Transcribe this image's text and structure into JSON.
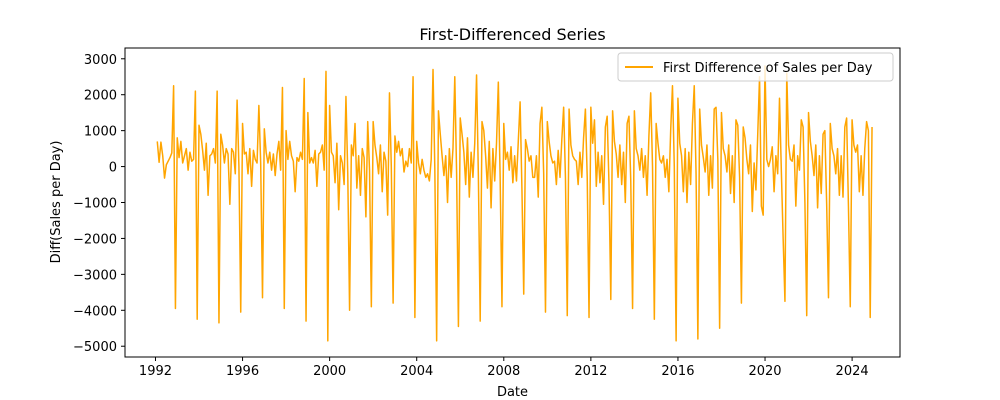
{
  "chart_data": {
    "type": "line",
    "title": "First-Differenced Series",
    "xlabel": "Date",
    "ylabel": "Diff(Sales per Day)",
    "xlim": [
      1990.6,
      2026.2
    ],
    "ylim": [
      -5300,
      3300
    ],
    "x_ticks": [
      1992,
      1996,
      2000,
      2004,
      2008,
      2012,
      2016,
      2020,
      2024
    ],
    "x_tick_labels": [
      "1992",
      "1996",
      "2000",
      "2004",
      "2008",
      "2012",
      "2016",
      "2020",
      "2024"
    ],
    "y_ticks": [
      -5000,
      -4000,
      -3000,
      -2000,
      -1000,
      0,
      1000,
      2000,
      3000
    ],
    "y_tick_labels": [
      "−5000",
      "−4000",
      "−3000",
      "−2000",
      "−1000",
      "0",
      "1000",
      "2000",
      "3000"
    ],
    "grid": false,
    "legend_position": "top-right",
    "x_start": 1992.083,
    "x_step": 0.08333,
    "series": [
      {
        "name": "First Difference of Sales per Day",
        "color": "#ffa500",
        "values": [
          700,
          120,
          680,
          300,
          -320,
          50,
          150,
          250,
          380,
          2250,
          -3950,
          800,
          250,
          700,
          100,
          300,
          500,
          -100,
          400,
          150,
          200,
          2100,
          -4250,
          1150,
          900,
          450,
          -100,
          650,
          -800,
          300,
          350,
          500,
          100,
          2100,
          -4350,
          900,
          600,
          100,
          500,
          350,
          -1050,
          500,
          400,
          -200,
          1850,
          0,
          -4050,
          1200,
          350,
          400,
          -200,
          500,
          -550,
          450,
          200,
          100,
          1700,
          100,
          -3650,
          1050,
          400,
          100,
          400,
          -100,
          350,
          -250,
          350,
          700,
          -100,
          2200,
          -3950,
          1000,
          200,
          700,
          300,
          150,
          -700,
          250,
          150,
          400,
          200,
          2450,
          -4300,
          1500,
          100,
          250,
          100,
          450,
          -550,
          350,
          400,
          600,
          -100,
          2650,
          -4850,
          1700,
          400,
          300,
          -450,
          650,
          -1200,
          300,
          100,
          -500,
          1950,
          -200,
          -4000,
          600,
          300,
          1200,
          -600,
          300,
          -800,
          500,
          250,
          -1400,
          1250,
          -100,
          -3900,
          1250,
          600,
          250,
          -200,
          600,
          -700,
          400,
          150,
          -1350,
          2050,
          0,
          -3800,
          850,
          400,
          700,
          300,
          500,
          -150,
          150,
          0,
          500,
          100,
          2500,
          -4200,
          700,
          100,
          -200,
          200,
          -100,
          -300,
          -200,
          -400,
          200,
          2700,
          -100,
          -4850,
          1550,
          900,
          300,
          -250,
          300,
          -1000,
          500,
          -300,
          500,
          2500,
          -200,
          -4450,
          1350,
          900,
          400,
          -500,
          800,
          -850,
          400,
          -300,
          650,
          2550,
          -250,
          -4300,
          1250,
          1000,
          300,
          -600,
          700,
          -1150,
          500,
          -400,
          650,
          2350,
          -300,
          -3900,
          1200,
          200,
          400,
          -100,
          550,
          -450,
          300,
          -400,
          700,
          1800,
          -600,
          -3550,
          750,
          500,
          150,
          300,
          -300,
          -300,
          300,
          -850,
          1200,
          1650,
          -200,
          -4050,
          1250,
          700,
          300,
          100,
          150,
          -500,
          450,
          -300,
          750,
          1650,
          -300,
          -4150,
          1600,
          600,
          300,
          200,
          150,
          -500,
          400,
          -300,
          800,
          1600,
          -300,
          -4200,
          1650,
          650,
          1300,
          -550,
          400,
          -450,
          300,
          -1050,
          1100,
          1400,
          -500,
          -3700,
          1550,
          700,
          350,
          -300,
          600,
          -500,
          400,
          -1000,
          1200,
          1400,
          -400,
          -3950,
          1550,
          500,
          300,
          -100,
          500,
          -300,
          300,
          -800,
          850,
          2050,
          0,
          -4250,
          1200,
          650,
          200,
          100,
          300,
          -300,
          200,
          -700,
          1000,
          2250,
          0,
          -4850,
          1900,
          650,
          300,
          -700,
          500,
          -1000,
          400,
          -500,
          1200,
          2250,
          -200,
          -4800,
          1600,
          600,
          250,
          -150,
          600,
          -800,
          300,
          -600,
          1600,
          1650,
          200,
          -4500,
          1500,
          500,
          300,
          -150,
          600,
          -750,
          300,
          -1000,
          1300,
          1150,
          -300,
          -3800,
          1100,
          800,
          200,
          -200,
          600,
          -1250,
          100,
          -650,
          900,
          2500,
          -1100,
          -1350,
          2800,
          200,
          0,
          200,
          550,
          -700,
          300,
          -200,
          1900,
          -100,
          -2000,
          -3750,
          2600,
          600,
          200,
          150,
          600,
          -1100,
          300,
          -100,
          1300,
          1100,
          -1000,
          -4150,
          1500,
          700,
          300,
          -250,
          600,
          -1150,
          300,
          -750,
          900,
          1000,
          -1050,
          -3650,
          1200,
          500,
          300,
          -200,
          500,
          -800,
          300,
          -850,
          1100,
          1350,
          -1100,
          -3900,
          1300,
          600,
          400,
          600,
          -700,
          300,
          -800,
          500,
          1250,
          1000,
          -4200,
          1100
        ]
      }
    ]
  }
}
